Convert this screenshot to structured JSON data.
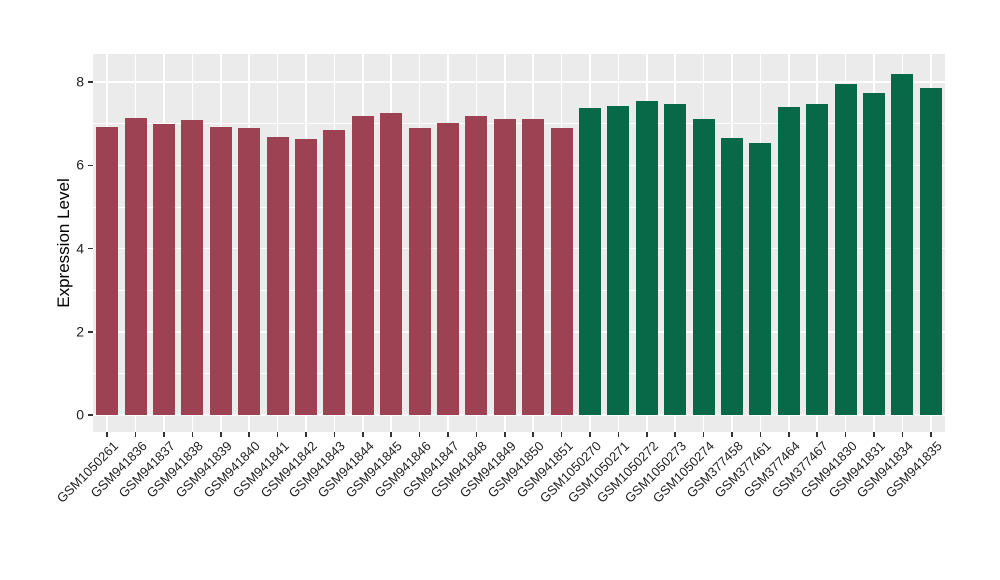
{
  "chart_data": {
    "type": "bar",
    "title": "",
    "xlabel": "",
    "ylabel": "Expression Level",
    "legend": "none",
    "grid": "on",
    "panel_background": "#EBEBEB",
    "grid_color": "#FFFFFF",
    "tick_color": "#333333",
    "ylim": [
      0,
      8.65
    ],
    "yticks": [
      0,
      2,
      4,
      6,
      8
    ],
    "ytick_labels": [
      "0",
      "2",
      "4",
      "6",
      "8"
    ],
    "y_minor_ticks": [
      1,
      3,
      5,
      7
    ],
    "categories": [
      "GSM1050261",
      "GSM941836",
      "GSM941837",
      "GSM941838",
      "GSM941839",
      "GSM941840",
      "GSM941841",
      "GSM941842",
      "GSM941843",
      "GSM941844",
      "GSM941845",
      "GSM941846",
      "GSM941847",
      "GSM941848",
      "GSM941849",
      "GSM941850",
      "GSM941851",
      "GSM1050270",
      "GSM1050271",
      "GSM1050272",
      "GSM1050273",
      "GSM1050274",
      "GSM377458",
      "GSM377461",
      "GSM377464",
      "GSM377467",
      "GSM941830",
      "GSM941831",
      "GSM941834",
      "GSM941835"
    ],
    "values": [
      6.93,
      7.13,
      6.99,
      7.08,
      6.93,
      6.91,
      6.69,
      6.63,
      6.86,
      7.18,
      7.25,
      6.91,
      7.03,
      7.19,
      7.11,
      7.11,
      6.91,
      7.39,
      7.43,
      7.56,
      7.48,
      7.12,
      6.65,
      6.53,
      7.41,
      7.48,
      7.95,
      7.75,
      8.2,
      7.85
    ],
    "groups": [
      "group1",
      "group1",
      "group1",
      "group1",
      "group1",
      "group1",
      "group1",
      "group1",
      "group1",
      "group1",
      "group1",
      "group1",
      "group1",
      "group1",
      "group1",
      "group1",
      "group1",
      "group2",
      "group2",
      "group2",
      "group2",
      "group2",
      "group2",
      "group2",
      "group2",
      "group2",
      "group2",
      "group2",
      "group2",
      "group2"
    ],
    "palette": {
      "group1": "#9C4252",
      "group2": "#076947"
    }
  }
}
